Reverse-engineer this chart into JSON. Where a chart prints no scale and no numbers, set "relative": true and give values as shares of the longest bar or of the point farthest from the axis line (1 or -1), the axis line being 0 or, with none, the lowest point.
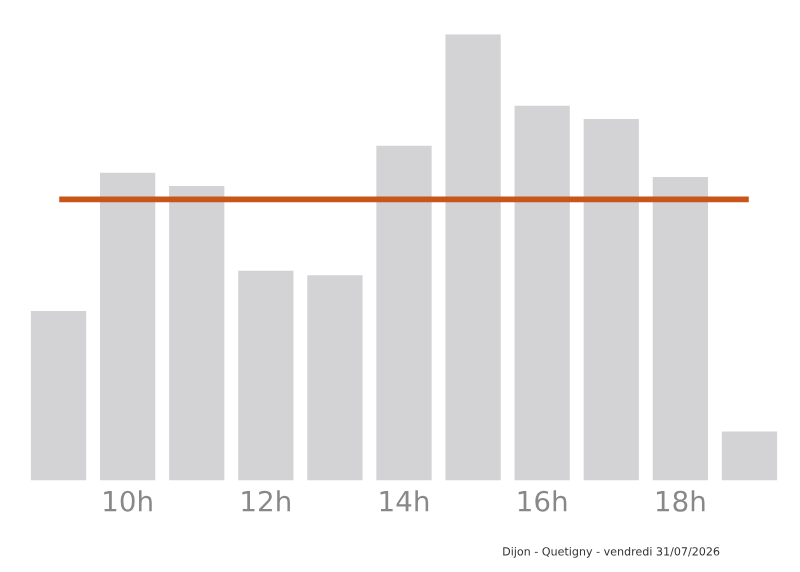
{
  "chart_data": {
    "type": "bar",
    "relative": true,
    "categories": [
      null,
      "10h",
      null,
      "12h",
      null,
      "14h",
      null,
      "16h",
      null,
      "18h",
      null
    ],
    "values": [
      0.38,
      0.69,
      0.66,
      0.47,
      0.46,
      0.75,
      1,
      0.84,
      0.81,
      0.68,
      0.11
    ],
    "color": "#d3d3d5",
    "ref_lines": [
      {
        "axis": "y",
        "value": 0.63,
        "color": "#c8561a"
      }
    ],
    "annotations": [
      "Dijon - Quetigny - vendredi 31/07/2026"
    ],
    "grid": false,
    "legend": false
  }
}
